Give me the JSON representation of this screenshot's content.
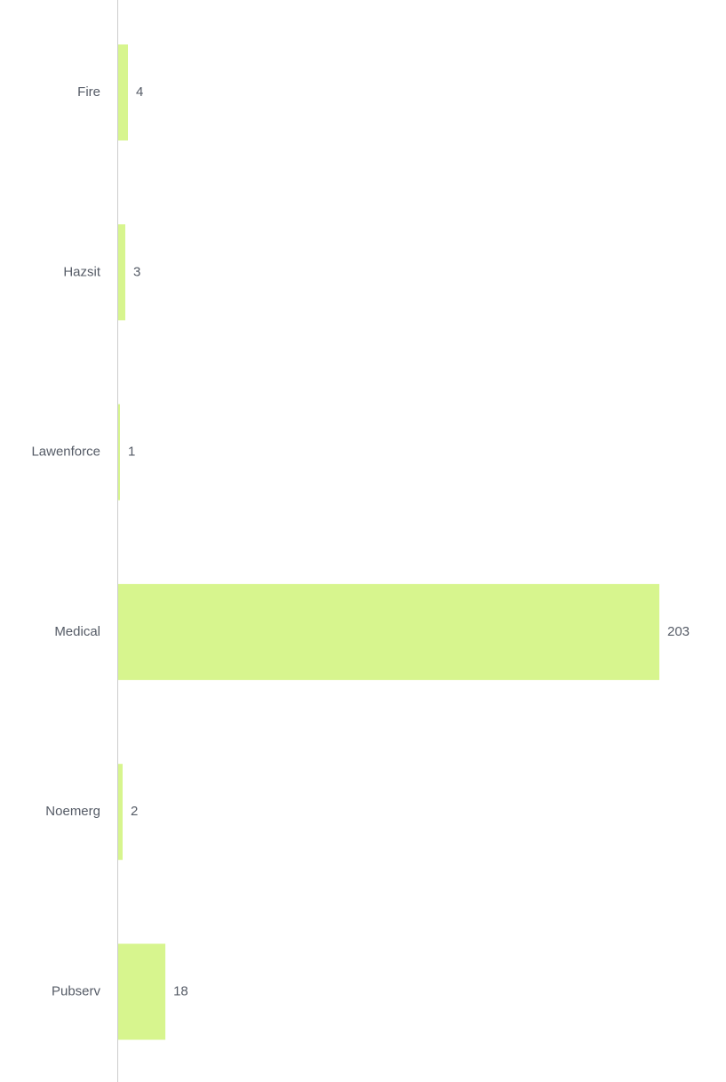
{
  "chart_data": {
    "type": "bar",
    "orientation": "horizontal",
    "categories": [
      "Fire",
      "Hazsit",
      "Lawenforce",
      "Medical",
      "Noemerg",
      "Pubserv"
    ],
    "values": [
      4,
      3,
      1,
      203,
      2,
      18
    ],
    "title": "",
    "xlabel": "",
    "ylabel": "",
    "xlim": [
      0,
      203
    ],
    "grid": false,
    "legend": "none",
    "data_labels": true
  },
  "colors": {
    "bar": "#d7f58e",
    "axis": "#cccccc",
    "label_text": "#555b66"
  }
}
